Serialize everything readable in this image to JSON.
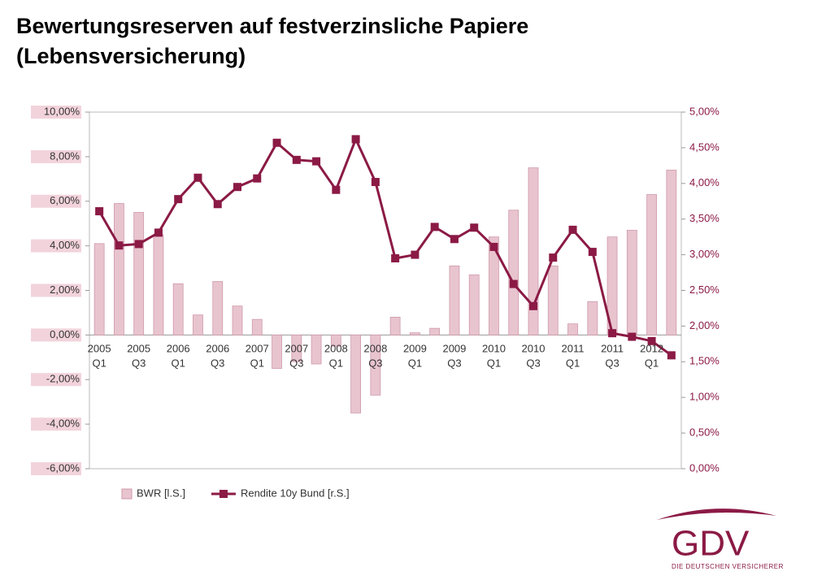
{
  "chart_data": {
    "type": "bar_line",
    "title": [
      "Bewertungsreserven auf festverzinsliche Papiere",
      "(Lebensversicherung)"
    ],
    "categories": [
      "2005 Q1",
      null,
      "2005 Q3",
      null,
      "2006 Q1",
      null,
      "2006 Q3",
      null,
      "2007 Q1",
      null,
      "2007 Q3",
      null,
      "2008 Q1",
      null,
      "2008 Q3",
      null,
      "2009 Q1",
      null,
      "2009 Q3",
      null,
      "2010 Q1",
      null,
      "2010 Q3",
      null,
      "2011 Q1",
      null,
      "2011 Q3",
      null,
      "2012 Q1",
      null
    ],
    "series": [
      {
        "name": "BWR [l.S.]",
        "color": "#e8c4cf",
        "type": "bar",
        "axis": "y",
        "values": [
          4.1,
          5.9,
          5.5,
          4.5,
          2.3,
          0.9,
          2.4,
          1.3,
          0.7,
          -1.5,
          -1.2,
          -1.3,
          -0.5,
          -3.5,
          -2.7,
          0.8,
          0.1,
          0.3,
          3.1,
          2.7,
          4.4,
          5.6,
          7.5,
          3.1,
          0.5,
          1.5,
          4.4,
          4.7,
          6.3,
          7.4
        ]
      },
      {
        "name": "Rendite 10y Bund [r.S.]",
        "color": "#8b1a45",
        "type": "line",
        "axis": "y2",
        "values": [
          3.61,
          3.13,
          3.15,
          3.31,
          3.78,
          4.08,
          3.71,
          3.95,
          4.07,
          4.57,
          4.33,
          4.31,
          3.91,
          4.62,
          4.02,
          2.95,
          3.0,
          3.39,
          3.22,
          3.38,
          3.11,
          2.59,
          2.28,
          2.96,
          3.35,
          3.04,
          1.9,
          1.85,
          1.79,
          1.59
        ]
      }
    ],
    "ylim": [
      -6,
      10
    ],
    "yticks": [
      {
        "value": -6,
        "label": "-6,00%"
      },
      {
        "value": -4,
        "label": "-4,00%"
      },
      {
        "value": -2,
        "label": "-2,00%"
      },
      {
        "value": 0,
        "label": "0,00%"
      },
      {
        "value": 2,
        "label": "2,00%"
      },
      {
        "value": 4,
        "label": "4,00%"
      },
      {
        "value": 6,
        "label": "6,00%"
      },
      {
        "value": 8,
        "label": "8,00%"
      },
      {
        "value": 10,
        "label": "10,00%"
      }
    ],
    "y2lim": [
      0,
      5
    ],
    "y2ticks": [
      {
        "value": 0,
        "label": "0,00%"
      },
      {
        "value": 0.5,
        "label": "0,50%"
      },
      {
        "value": 1,
        "label": "1,00%"
      },
      {
        "value": 1.5,
        "label": "1,50%"
      },
      {
        "value": 2,
        "label": "2,00%"
      },
      {
        "value": 2.5,
        "label": "2,50%"
      },
      {
        "value": 3,
        "label": "3,00%"
      },
      {
        "value": 3.5,
        "label": "3,50%"
      },
      {
        "value": 4,
        "label": "4,00%"
      },
      {
        "value": 4.5,
        "label": "4,50%"
      },
      {
        "value": 5,
        "label": "5,00%"
      }
    ],
    "legend": "bottom-left"
  },
  "logo": {
    "name": "GDV",
    "tagline": "DIE DEUTSCHEN VERSICHERER"
  }
}
